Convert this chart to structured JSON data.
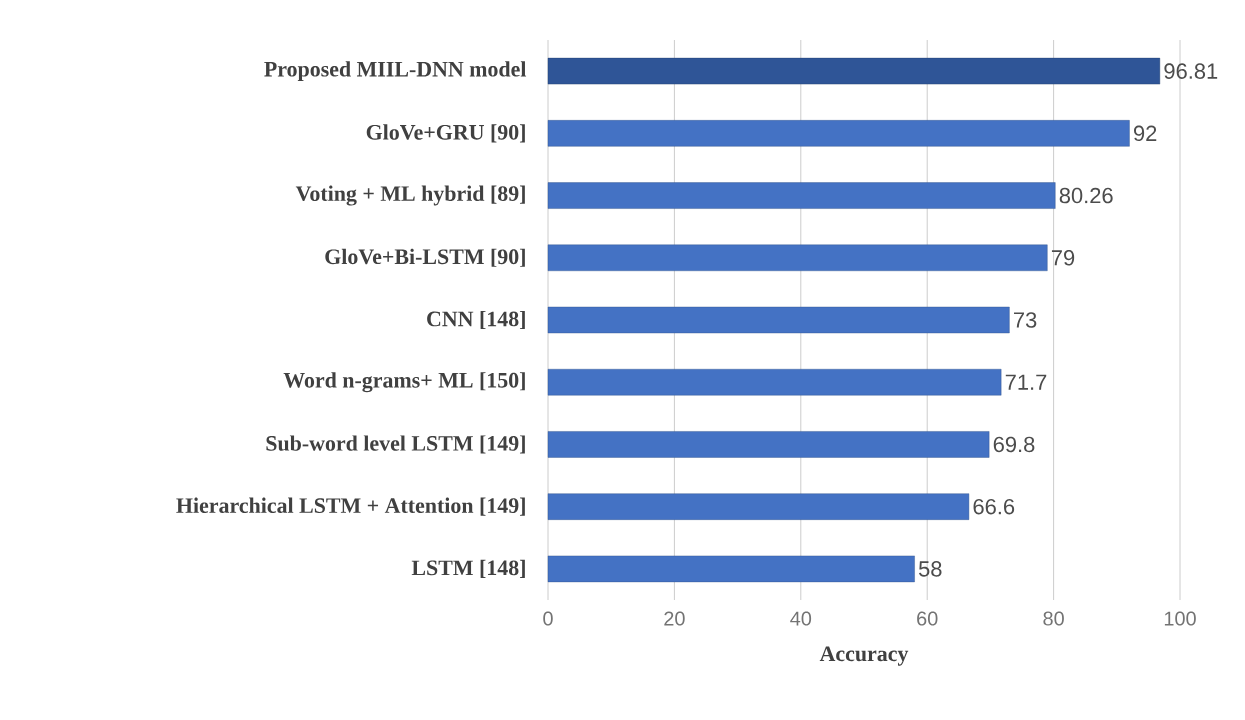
{
  "chart_data": {
    "type": "bar",
    "orientation": "horizontal",
    "xlabel": "Accuracy",
    "categories": [
      "Proposed MIIL-DNN model",
      "GloVe+GRU [90]",
      "Voting + ML hybrid [89]",
      "GloVe+Bi-LSTM [90]",
      "CNN [148]",
      "Word n-grams+ ML [150]",
      "Sub-word level LSTM [149]",
      "Hierarchical LSTM + Attention [149]",
      "LSTM [148]"
    ],
    "values": [
      96.81,
      92,
      80.26,
      79,
      73,
      71.7,
      69.8,
      66.6,
      58
    ],
    "colors": [
      "#2f5597",
      "#4472c4",
      "#4472c4",
      "#4472c4",
      "#4472c4",
      "#4472c4",
      "#4472c4",
      "#4472c4",
      "#4472c4"
    ],
    "xlim": [
      0,
      100
    ],
    "xticks": [
      0,
      20,
      40,
      60,
      80,
      100
    ],
    "grid": "x",
    "data_labels": true
  }
}
